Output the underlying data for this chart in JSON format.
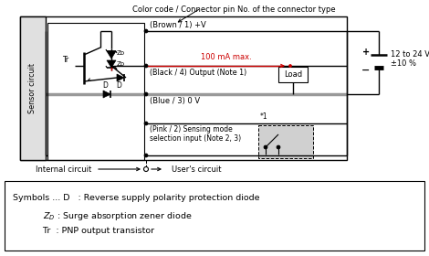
{
  "title_annotation": "Color code / Connector pin No. of the connector type",
  "sensor_circuit_label": "Sensor circuit",
  "internal_circuit_label": "Internal circuit",
  "users_circuit_label": "User's circuit",
  "brown_label": "(Brown / 1) +V",
  "black_label": "(Black / 4) Output (Note 1)",
  "blue_label": "(Blue / 3) 0 V",
  "pink_label": "(Pink / 2) Sensing mode\nselection input (Note 2, 3)",
  "current_label": "100 mA max.",
  "voltage_label": "12 to 24 V DC\n±10 %",
  "load_label": "Load",
  "note1_label": "*1",
  "tr_label": "Tr",
  "zd1_label": "Zᴅ",
  "zd2_label": "Zᴅ",
  "d1_label": "D",
  "d2_label": "D",
  "plus_label": "+",
  "minus_label": "−",
  "bg_color": "#ffffff",
  "line_color": "#000000",
  "red_color": "#cc0000",
  "gray_color": "#999999",
  "light_gray": "#d0d0d0",
  "sensor_bg": "#e0e0e0"
}
